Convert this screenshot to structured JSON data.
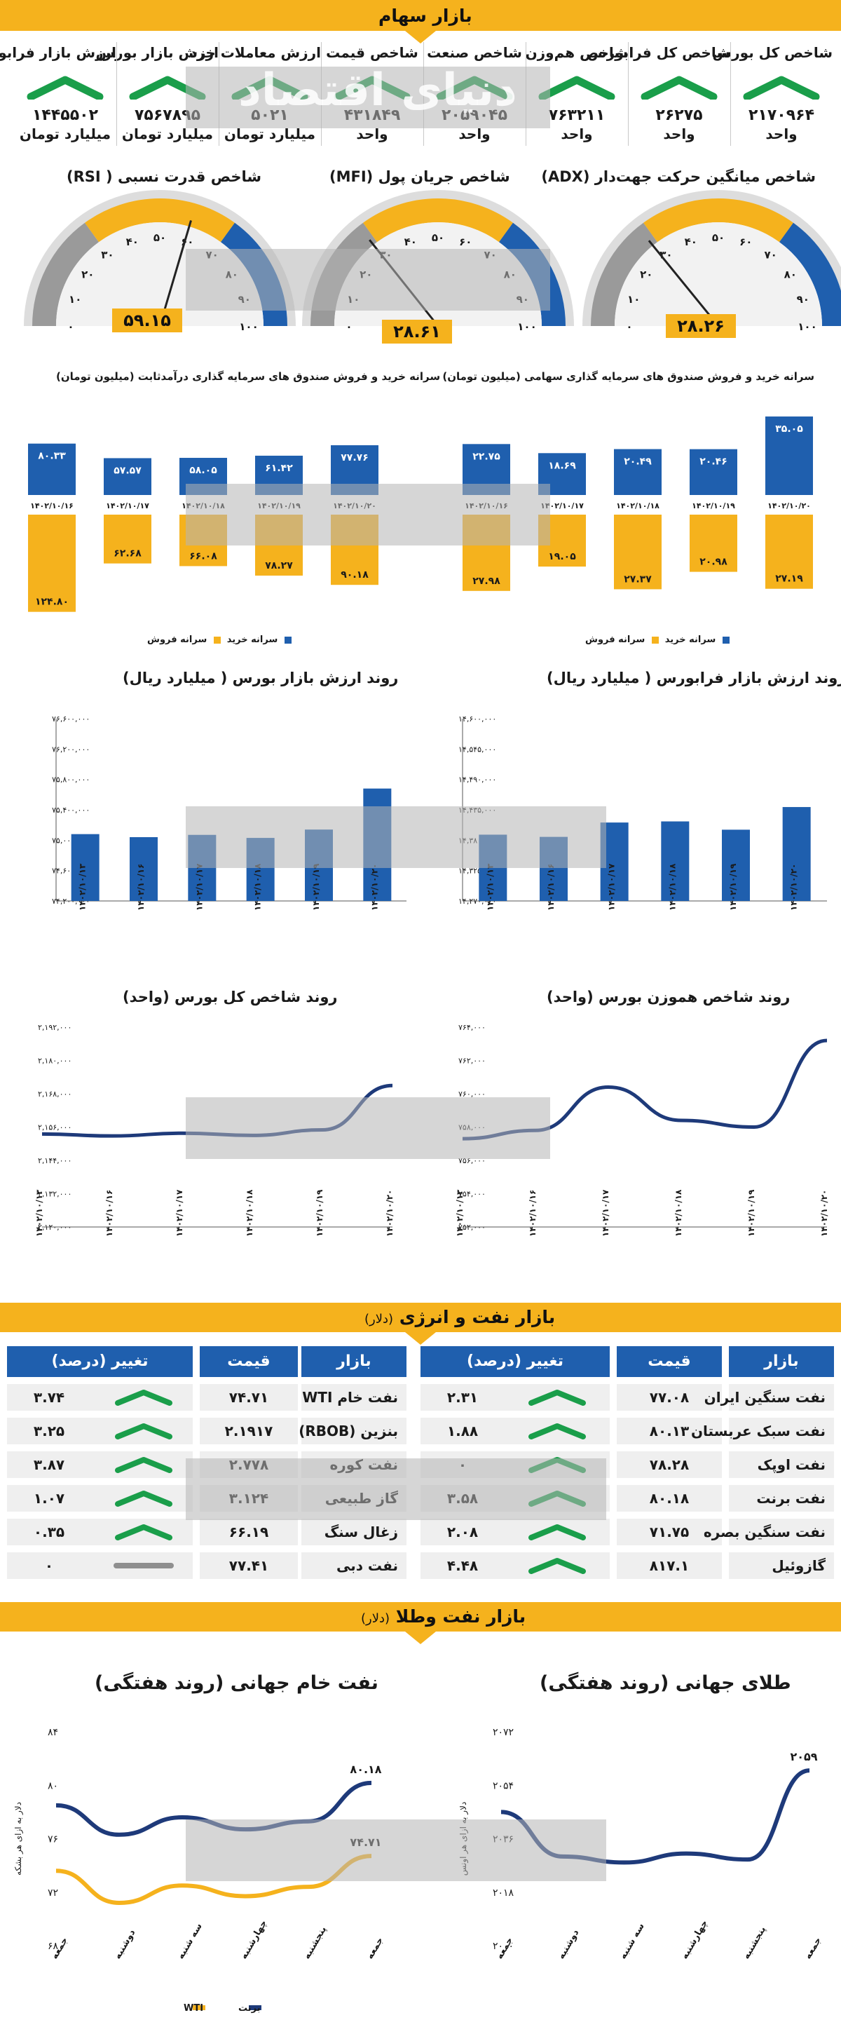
{
  "colors": {
    "blue": "#1f5fae",
    "navy": "#1e3a7a",
    "orange": "#f5b21d",
    "gray": "#9a9a9a",
    "green": "#1a9e4a"
  },
  "sections": {
    "stocks": "بازار سهام",
    "energy": "بازار نفت و انرژی",
    "energy_unit": "(دلار)",
    "oil_gold": "بازار نفت وطلا",
    "oil_gold_unit": "(دلار)"
  },
  "watermark": {
    "text": "دنیای اقتصاد"
  },
  "indices": [
    {
      "name": "شاخص کل بورس",
      "value": "۲۱۷۰۹۶۴",
      "unit": "واحد",
      "trend": "up"
    },
    {
      "name": "شاخص کل فرابورس",
      "value": "۲۶۲۷۵",
      "unit": "واحد",
      "trend": "up"
    },
    {
      "name": "شاخص هم‌وزن",
      "value": "۷۶۳۲۱۱",
      "unit": "واحد",
      "trend": "up"
    },
    {
      "name": "شاخص صنعت",
      "value": "۲۰۵۹۰۴۵",
      "unit": "واحد",
      "trend": "up"
    },
    {
      "name": "شاخص قیمت",
      "value": "۴۳۱۸۴۹",
      "unit": "واحد",
      "trend": "up"
    },
    {
      "name": "ارزش معاملات خرد",
      "value": "۵۰۲۱",
      "unit": "میلیارد تومان",
      "trend": "up"
    },
    {
      "name": "ارزش بازار بورس",
      "value": "۷۵۶۷۸۹۵",
      "unit": "میلیارد تومان",
      "trend": "up"
    },
    {
      "name": "ارزش بازار فرابورس",
      "value": "۱۴۴۵۵۰۲",
      "unit": "میلیارد تومان",
      "trend": "up"
    }
  ],
  "gauges": [
    {
      "title": "شاخص میانگین حرکت جهت‌دار (ADX)",
      "value": 28.26,
      "value_label": "۲۸.۲۶",
      "ticks": [
        "۰",
        "۱۰",
        "۲۰",
        "۳۰",
        "۴۰",
        "۵۰",
        "۶۰",
        "۷۰",
        "۸۰",
        "۹۰",
        "۱۰۰"
      ]
    },
    {
      "title": "شاخص جریان پول (MFI)",
      "value": 28.61,
      "value_label": "۲۸.۶۱",
      "ticks": [
        "۰",
        "۱۰",
        "۲۰",
        "۳۰",
        "۴۰",
        "۵۰",
        "۶۰",
        "۷۰",
        "۸۰",
        "۹۰",
        "۱۰۰"
      ]
    },
    {
      "title": "شاخص قدرت نسبی ( RSI)",
      "value": 59.15,
      "value_label": "۵۹.۱۵",
      "ticks": [
        "۰",
        "۱۰",
        "۲۰",
        "۳۰",
        "۴۰",
        "۵۰",
        "۶۰",
        "۷۰",
        "۸۰",
        "۹۰",
        "۱۰۰"
      ]
    }
  ],
  "chart_data": [
    {
      "id": "equity_funds",
      "type": "bar",
      "title": "سرانه خرید و فروش صندوق های سرمایه گذاری سهامی (میلیون تومان)",
      "categories": [
        "۱۴۰۲/۱۰/۱۶",
        "۱۴۰۲/۱۰/۱۷",
        "۱۴۰۲/۱۰/۱۸",
        "۱۴۰۲/۱۰/۱۹",
        "۱۴۰۲/۱۰/۲۰"
      ],
      "series": [
        {
          "name": "سرانه خرید",
          "values": [
            22.75,
            18.69,
            20.49,
            20.46,
            35.05
          ],
          "labels": [
            "۲۲.۷۵",
            "۱۸.۶۹",
            "۲۰.۴۹",
            "۲۰.۴۶",
            "۳۵.۰۵"
          ]
        },
        {
          "name": "سرانه فروش",
          "values": [
            27.98,
            19.05,
            27.37,
            20.98,
            27.19
          ],
          "labels": [
            "۲۷.۹۸",
            "۱۹.۰۵",
            "۲۷.۳۷",
            "۲۰.۹۸",
            "۲۷.۱۹"
          ]
        }
      ]
    },
    {
      "id": "fixed_income_funds",
      "type": "bar",
      "title": "سرانه خرید و فروش صندوق های سرمایه گذاری درآمدثابت (میلیون تومان)",
      "categories": [
        "۱۴۰۲/۱۰/۱۶",
        "۱۴۰۲/۱۰/۱۷",
        "۱۴۰۲/۱۰/۱۸",
        "۱۴۰۲/۱۰/۱۹",
        "۱۴۰۲/۱۰/۲۰"
      ],
      "series": [
        {
          "name": "سرانه خرید",
          "values": [
            80.33,
            57.57,
            58.05,
            61.42,
            77.76
          ],
          "labels": [
            "۸۰.۳۳",
            "۵۷.۵۷",
            "۵۸.۰۵",
            "۶۱.۴۲",
            "۷۷.۷۶"
          ]
        },
        {
          "name": "سرانه فروش",
          "values": [
            124.8,
            62.68,
            66.08,
            78.27,
            90.18
          ],
          "labels": [
            "۱۲۴.۸۰",
            "۶۲.۶۸",
            "۶۶.۰۸",
            "۷۸.۲۷",
            "۹۰.۱۸"
          ]
        }
      ]
    },
    {
      "id": "farabourse_value",
      "type": "bar",
      "title": "روند ارزش بازار فرابورس ( میلیارد ریال)",
      "categories": [
        "۱۴۰۲/۱۰/۱۳",
        "۱۴۰۲/۱۰/۱۶",
        "۱۴۰۲/۱۰/۱۷",
        "۱۴۰۲/۱۰/۱۸",
        "۱۴۰۲/۱۰/۱۹",
        "۱۴۰۲/۱۰/۲۰"
      ],
      "values": [
        14390000,
        14386000,
        14412000,
        14414000,
        14399000,
        14440000
      ],
      "ylim": [
        14270000,
        14600000
      ],
      "yticks": [
        "۱۴,۲۷۰,۰۰۰",
        "۱۴,۳۲۵,۰۰۰",
        "۱۴,۳۸۰,۰۰۰",
        "۱۴,۴۳۵,۰۰۰",
        "۱۴,۴۹۰,۰۰۰",
        "۱۴,۵۴۵,۰۰۰",
        "۱۴,۶۰۰,۰۰۰"
      ]
    },
    {
      "id": "bourse_value",
      "type": "bar",
      "title": "روند ارزش بازار بورس ( میلیارد ریال)",
      "categories": [
        "۱۴۰۲/۱۰/۱۳",
        "۱۴۰۲/۱۰/۱۶",
        "۱۴۰۲/۱۰/۱۷",
        "۱۴۰۲/۱۰/۱۸",
        "۱۴۰۲/۱۰/۱۹",
        "۱۴۰۲/۱۰/۲۰"
      ],
      "values": [
        75080000,
        75040000,
        75070000,
        75030000,
        75140000,
        75680000
      ],
      "ylim": [
        74200000,
        76600000
      ],
      "yticks": [
        "۷۴,۲۰۰,۰۰۰",
        "۷۴,۶۰۰,۰۰۰",
        "۷۵,۰۰۰,۰۰۰",
        "۷۵,۴۰۰,۰۰۰",
        "۷۵,۸۰۰,۰۰۰",
        "۷۶,۲۰۰,۰۰۰",
        "۷۶,۶۰۰,۰۰۰"
      ]
    },
    {
      "id": "equal_weight_index",
      "type": "line",
      "title": "روند شاخص هموزن بورس (واحد)",
      "categories": [
        "۱۴۰۲/۱۰/۱۳",
        "۱۴۰۲/۱۰/۱۶",
        "۱۴۰۲/۱۰/۱۷",
        "۱۴۰۲/۱۰/۱۸",
        "۱۴۰۲/۱۰/۱۹",
        "۱۴۰۲/۱۰/۲۰"
      ],
      "values": [
        757300,
        757800,
        760400,
        758400,
        758000,
        763200
      ],
      "ylim": [
        752000,
        764000
      ],
      "yticks": [
        "۷۵۲,۰۰۰",
        "۷۵۴,۰۰۰",
        "۷۵۶,۰۰۰",
        "۷۵۸,۰۰۰",
        "۷۶۰,۰۰۰",
        "۷۶۲,۰۰۰",
        "۷۶۴,۰۰۰"
      ]
    },
    {
      "id": "total_index",
      "type": "line",
      "title": "روند شاخص کل بورس (واحد)",
      "categories": [
        "۱۴۰۲/۱۰/۱۳",
        "۱۴۰۲/۱۰/۱۶",
        "۱۴۰۲/۱۰/۱۷",
        "۱۴۰۲/۱۰/۱۸",
        "۱۴۰۲/۱۰/۱۹",
        "۱۴۰۲/۱۰/۲۰"
      ],
      "values": [
        2153500,
        2152800,
        2153800,
        2153000,
        2155000,
        2170964
      ],
      "ylim": [
        2120000,
        2192000
      ],
      "yticks": [
        "۲,۱۲۰,۰۰۰",
        "۲,۱۳۲,۰۰۰",
        "۲,۱۴۴,۰۰۰",
        "۲,۱۵۶,۰۰۰",
        "۲,۱۶۸,۰۰۰",
        "۲,۱۸۰,۰۰۰",
        "۲,۱۹۲,۰۰۰"
      ]
    },
    {
      "id": "gold_weekly",
      "type": "line",
      "title": "طلای جهانی (روند هفتگی)",
      "ylabel": "دلار به ازای هر اونس",
      "categories": [
        "جمعه",
        "دوشنبه",
        "سه شنبه",
        "چهارشنبه",
        "پنجشنبه",
        "جمعه"
      ],
      "values": [
        2045,
        2030,
        2028,
        2031,
        2029,
        2059
      ],
      "ylim": [
        2000,
        2072
      ],
      "yticks": [
        "۲۰۰۰",
        "۲۰۱۸",
        "۲۰۳۶",
        "۲۰۵۴",
        "۲۰۷۲"
      ],
      "last_label": "۲۰۵۹"
    },
    {
      "id": "oil_weekly",
      "type": "line",
      "title": "نفت خام جهانی (روند هفتگی)",
      "ylabel": "دلار به ازای هر بشکه",
      "categories": [
        "جمعه",
        "دوشنبه",
        "سه شنبه",
        "چهارشنبه",
        "پنجشنبه",
        "جمعه"
      ],
      "series": [
        {
          "name": "برنت",
          "values": [
            78.5,
            76.3,
            77.6,
            76.7,
            77.3,
            80.18
          ],
          "last_label": "۸۰.۱۸"
        },
        {
          "name": "WTI",
          "values": [
            73.6,
            71.2,
            72.5,
            71.7,
            72.4,
            74.71
          ],
          "last_label": "۷۴.۷۱"
        }
      ],
      "ylim": [
        68,
        84
      ],
      "yticks": [
        "۶۸",
        "۷۲",
        "۷۶",
        "۸۰",
        "۸۴"
      ]
    }
  ],
  "energy_table": {
    "headers": [
      "بازار",
      "قیمت",
      "تغییر (درصد)"
    ],
    "right": [
      {
        "market": "نفت سنگین ایران",
        "price": "۷۷.۰۸",
        "change": "۲.۳۱",
        "trend": "up"
      },
      {
        "market": "نفت سبک عربستان",
        "price": "۸۰.۱۳",
        "change": "۱.۸۸",
        "trend": "up"
      },
      {
        "market": "نفت اوپک",
        "price": "۷۸.۲۸",
        "change": "۰",
        "trend": "up"
      },
      {
        "market": "نفت برنت",
        "price": "۸۰.۱۸",
        "change": "۳.۵۸",
        "trend": "up"
      },
      {
        "market": "نفت سنگین بصره",
        "price": "۷۱.۷۵",
        "change": "۲.۰۸",
        "trend": "up"
      },
      {
        "market": "گازوئیل",
        "price": "۸۱۷.۱",
        "change": "۴.۴۸",
        "trend": "up"
      }
    ],
    "left": [
      {
        "market": "نفت خام WTI",
        "price": "۷۴.۷۱",
        "change": "۳.۷۴",
        "trend": "up"
      },
      {
        "market": "بنزین (RBOB)",
        "price": "۲.۱۹۱۷",
        "change": "۳.۲۵",
        "trend": "up"
      },
      {
        "market": "نفت کوره",
        "price": "۲.۷۷۸",
        "change": "۳.۸۷",
        "trend": "up"
      },
      {
        "market": "گاز طبیعی",
        "price": "۳.۱۲۴",
        "change": "۱.۰۷",
        "trend": "up"
      },
      {
        "market": "زغال سنگ",
        "price": "۶۶.۱۹",
        "change": "۰.۳۵",
        "trend": "up"
      },
      {
        "market": "نفت دبی",
        "price": "۷۷.۴۱",
        "change": "۰",
        "trend": "flat"
      }
    ]
  }
}
